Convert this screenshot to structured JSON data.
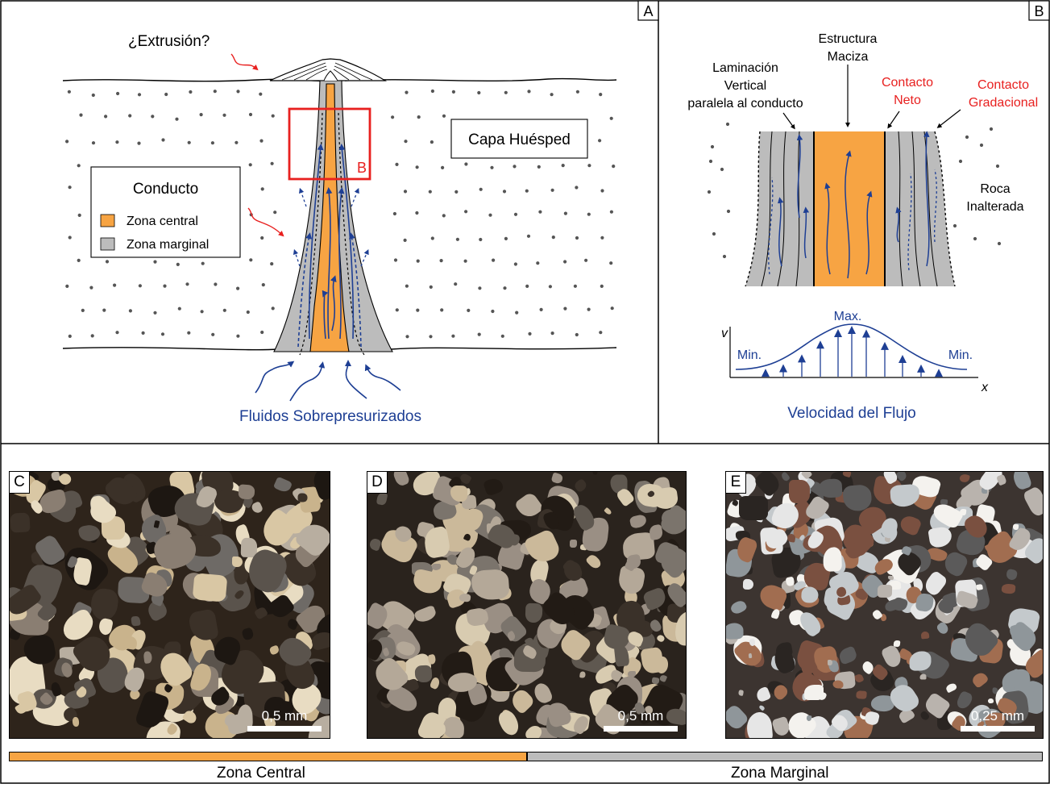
{
  "panels": {
    "A": {
      "letter": "A",
      "extrusion_label": "¿Extrusión?",
      "host_label": "Capa Huésped",
      "legend_title": "Conducto",
      "legend_items": [
        {
          "label": "Zona central",
          "color": "#f7a443"
        },
        {
          "label": "Zona marginal",
          "color": "#bcbcbc"
        }
      ],
      "inset_label": "B",
      "fluids_label": "Fluidos Sobrepresurizados"
    },
    "B": {
      "letter": "B",
      "lamination_label": [
        "Laminación",
        "Vertical",
        "paralela al conducto"
      ],
      "massive_label": [
        "Estructura",
        "Maciza"
      ],
      "sharp_contact_label": [
        "Contacto",
        "Neto"
      ],
      "gradational_contact_label": [
        "Contacto",
        "Gradacional"
      ],
      "unaltered_label": [
        "Roca",
        "Inalterada"
      ],
      "profile": {
        "v_axis": "v",
        "x_axis": "x",
        "max_label": "Max.",
        "min_left_label": "Min.",
        "min_right_label": "Min.",
        "caption": "Velocidad del Flujo"
      }
    }
  },
  "photos": [
    {
      "letter": "C",
      "scale": "0,5 mm",
      "zone": "central"
    },
    {
      "letter": "D",
      "scale": "0,5 mm",
      "zone": "central"
    },
    {
      "letter": "E",
      "scale": "0,25 mm",
      "zone": "marginal"
    }
  ],
  "zones": {
    "central_label": "Zona Central",
    "marginal_label": "Zona Marginal",
    "central_color": "#f7a443",
    "marginal_color": "#bcbcbc"
  },
  "colors": {
    "accent_red": "#e8201f",
    "flow_blue": "#1e3f94",
    "core_orange": "#f7a443",
    "margin_gray": "#bcbcbc"
  }
}
